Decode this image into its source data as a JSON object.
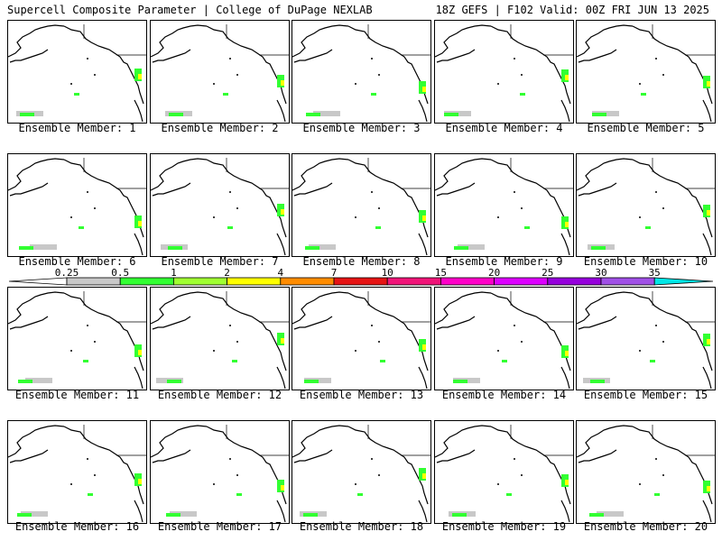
{
  "header": {
    "left": "Supercell Composite Parameter | College of DuPage NEXLAB",
    "right": "18Z GEFS | F102 Valid: 00Z FRI JUN 13 2025"
  },
  "panels": [
    {
      "label": "Ensemble Member: 1"
    },
    {
      "label": "Ensemble Member: 2"
    },
    {
      "label": "Ensemble Member: 3"
    },
    {
      "label": "Ensemble Member: 4"
    },
    {
      "label": "Ensemble Member: 5"
    },
    {
      "label": "Ensemble Member: 6"
    },
    {
      "label": "Ensemble Member: 7"
    },
    {
      "label": "Ensemble Member: 8"
    },
    {
      "label": "Ensemble Member: 9"
    },
    {
      "label": "Ensemble Member: 10"
    },
    {
      "label": "Ensemble Member: 11"
    },
    {
      "label": "Ensemble Member: 12"
    },
    {
      "label": "Ensemble Member: 13"
    },
    {
      "label": "Ensemble Member: 14"
    },
    {
      "label": "Ensemble Member: 15"
    },
    {
      "label": "Ensemble Member: 16"
    },
    {
      "label": "Ensemble Member: 17"
    },
    {
      "label": "Ensemble Member: 18"
    },
    {
      "label": "Ensemble Member: 19"
    },
    {
      "label": "Ensemble Member: 20"
    }
  ],
  "colorbar": {
    "ticks": [
      "0.25",
      "0.5",
      "1",
      "2",
      "4",
      "7",
      "10",
      "15",
      "20",
      "25",
      "30",
      "35"
    ],
    "colors": [
      "#ffffff",
      "#c8c8c8",
      "#32ff32",
      "#a0ff32",
      "#ffff00",
      "#ff8c00",
      "#e61414",
      "#f01478",
      "#ff00c8",
      "#dc00ff",
      "#9600dc",
      "#a050e6",
      "#00e6e6"
    ]
  }
}
